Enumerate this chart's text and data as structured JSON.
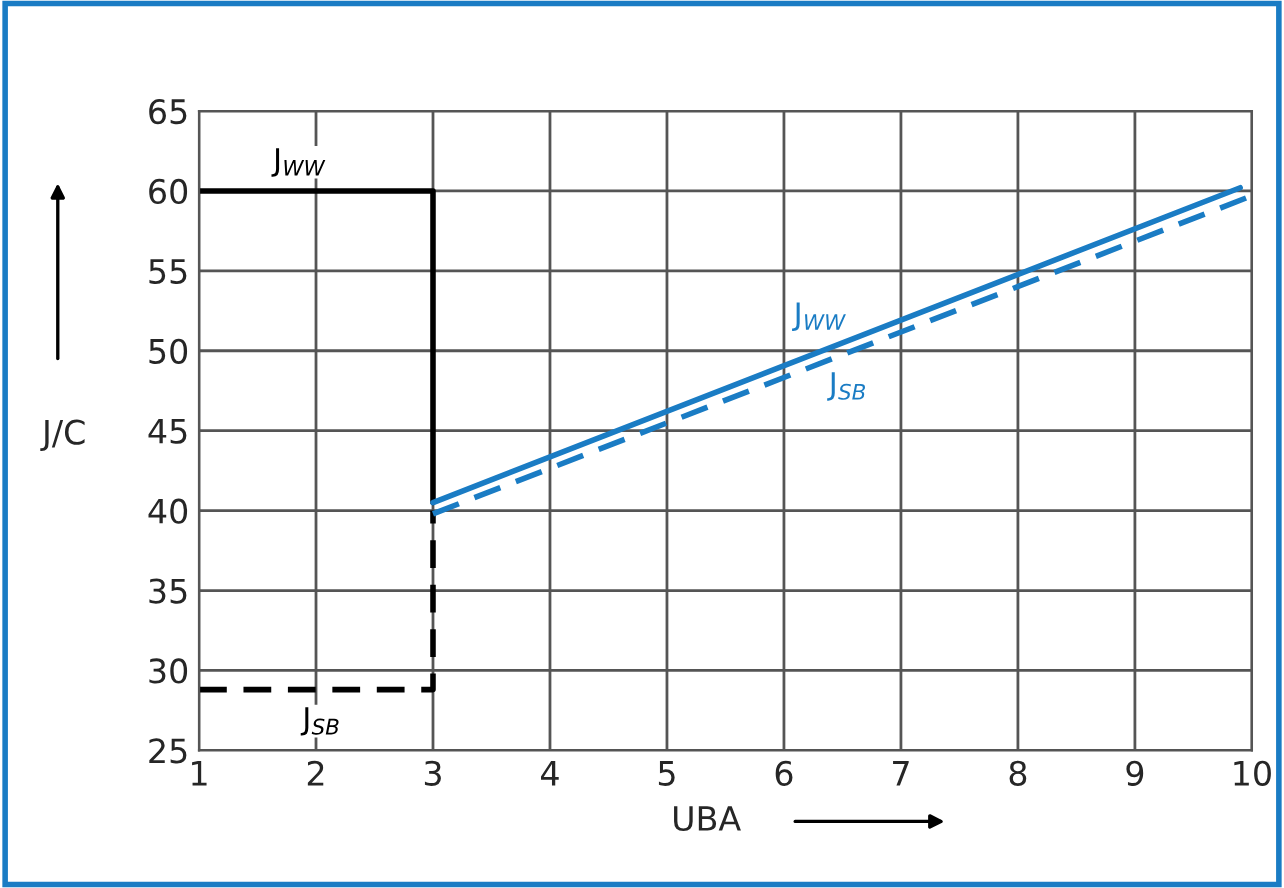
{
  "chart_data": {
    "type": "line",
    "xlabel": "UBA",
    "ylabel": "J/C",
    "xlim": [
      1,
      10
    ],
    "ylim": [
      25,
      65
    ],
    "xticks": [
      1,
      2,
      3,
      4,
      5,
      6,
      7,
      8,
      9,
      10
    ],
    "yticks": [
      25,
      30,
      35,
      40,
      45,
      50,
      55,
      60,
      65
    ],
    "grid": true,
    "marker": "none",
    "series": [
      {
        "name": "J$_{WW}$",
        "color": "#000000",
        "line_style": "solid",
        "x": [
          1,
          3,
          3
        ],
        "values": [
          60,
          60,
          40.5
        ]
      },
      {
        "name": "J$_{SB}$",
        "color": "#000000",
        "line_style": "dashed",
        "x": [
          1,
          3,
          3
        ],
        "values": [
          28.8,
          28.8,
          40
        ]
      },
      {
        "name": "J$_{WW}$",
        "color": "#1a7cc4",
        "line_style": "solid",
        "x": [
          3,
          9.9
        ],
        "values": [
          40.5,
          60.2
        ]
      },
      {
        "name": "J$_{SB}$",
        "color": "#1a7cc4",
        "line_style": "dashed",
        "x": [
          3,
          10
        ],
        "values": [
          39.8,
          59.7
        ]
      }
    ]
  }
}
